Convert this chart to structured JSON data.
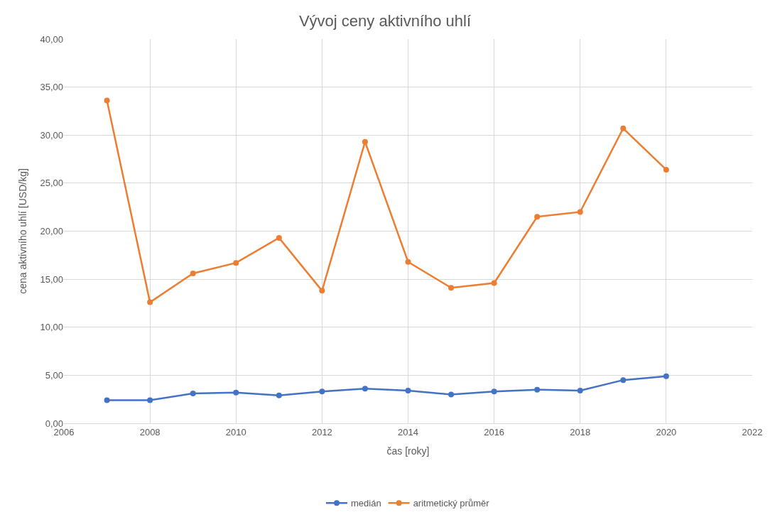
{
  "chart_data": {
    "type": "line",
    "title": "Vývoj ceny aktivního uhlí",
    "xlabel": "čas [roky]",
    "ylabel": "cena aktivního uhlí [USD/kg]",
    "x": [
      2007,
      2008,
      2009,
      2010,
      2011,
      2012,
      2013,
      2014,
      2015,
      2016,
      2017,
      2018,
      2019,
      2020
    ],
    "series": [
      {
        "name": "medián",
        "color": "#4472c4",
        "values": [
          2.4,
          2.4,
          3.1,
          3.2,
          2.9,
          3.3,
          3.6,
          3.4,
          3.0,
          3.3,
          3.5,
          3.4,
          4.5,
          4.9
        ]
      },
      {
        "name": "aritmetický průměr",
        "color": "#ed7d31",
        "values": [
          33.6,
          12.6,
          15.6,
          16.7,
          19.3,
          13.8,
          29.3,
          16.8,
          14.1,
          14.6,
          21.5,
          22.0,
          30.7,
          26.4
        ]
      }
    ],
    "xlim": [
      2006,
      2022
    ],
    "xticks": [
      2006,
      2008,
      2010,
      2012,
      2014,
      2016,
      2018,
      2020,
      2022
    ],
    "ylim": [
      0,
      40
    ],
    "yticks": [
      {
        "value": 0,
        "label": "0,00"
      },
      {
        "value": 5,
        "label": "5,00"
      },
      {
        "value": 10,
        "label": "10,00"
      },
      {
        "value": 15,
        "label": "15,00"
      },
      {
        "value": 20,
        "label": "20,00"
      },
      {
        "value": 25,
        "label": "25,00"
      },
      {
        "value": 30,
        "label": "30,00"
      },
      {
        "value": 35,
        "label": "35,00"
      },
      {
        "value": 40,
        "label": "40,00"
      }
    ],
    "grid": true,
    "legend": "bottom",
    "marker": "circle",
    "line_style": "solid"
  }
}
